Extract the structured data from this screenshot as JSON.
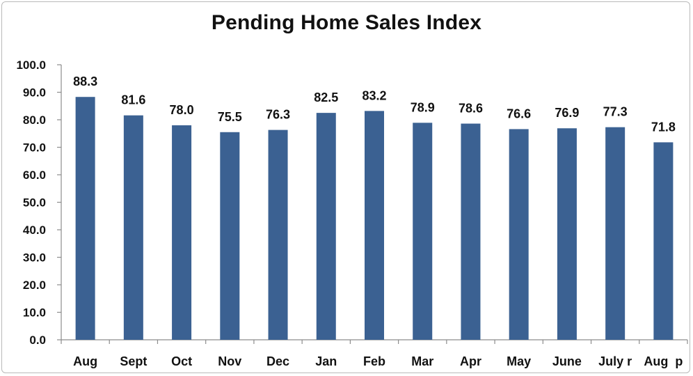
{
  "chart_data": {
    "type": "bar",
    "title": "Pending Home Sales Index",
    "xlabel": "",
    "ylabel": "",
    "categories": [
      "Aug",
      "Sept",
      "Oct",
      "Nov",
      "Dec",
      "Jan",
      "Feb",
      "Mar",
      "Apr",
      "May",
      "June",
      "July r",
      "Aug  p"
    ],
    "values": [
      88.3,
      81.6,
      78.0,
      75.5,
      76.3,
      82.5,
      83.2,
      78.9,
      78.6,
      76.6,
      76.9,
      77.3,
      71.8
    ],
    "value_labels": [
      "88.3",
      "81.6",
      "78.0",
      "75.5",
      "76.3",
      "82.5",
      "83.2",
      "78.9",
      "78.6",
      "76.6",
      "76.9",
      "77.3",
      "71.8"
    ],
    "ylim": [
      0,
      100
    ],
    "yticks": [
      "0.0",
      "10.0",
      "20.0",
      "30.0",
      "40.0",
      "50.0",
      "60.0",
      "70.0",
      "80.0",
      "90.0",
      "100.0"
    ],
    "grid": false,
    "legend": "none",
    "bar_color": "#3b6192"
  }
}
